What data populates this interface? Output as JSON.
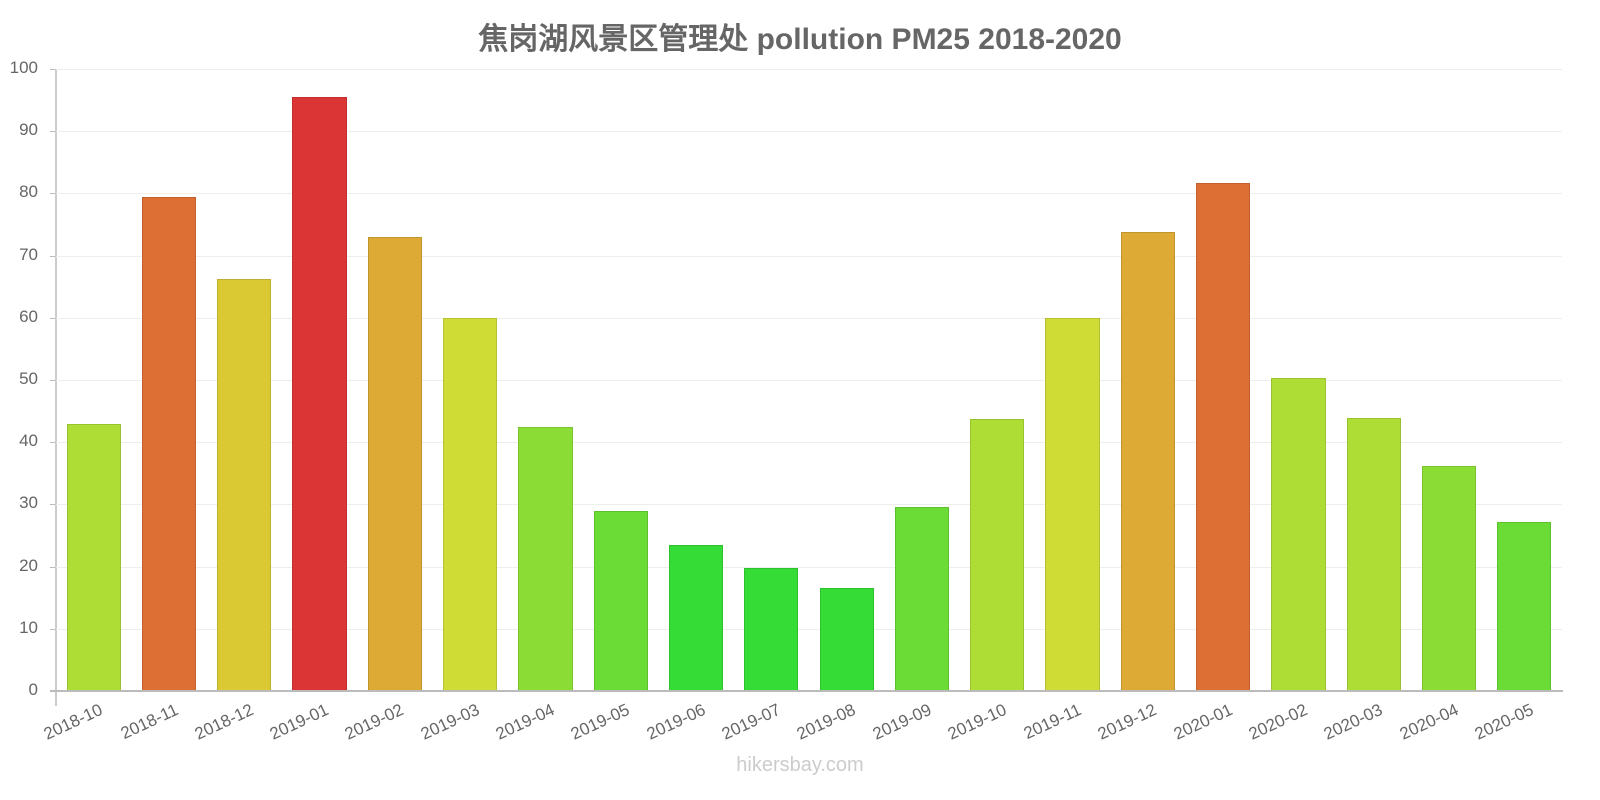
{
  "chart_data": {
    "type": "bar",
    "title": "焦岗湖风景区管理处 pollution PM25 2018-2020",
    "xlabel": "",
    "ylabel": "",
    "ylim": [
      0,
      100
    ],
    "yticks": [
      0,
      10,
      20,
      30,
      40,
      50,
      60,
      70,
      80,
      90,
      100
    ],
    "grid": true,
    "legend": null,
    "categories": [
      "2018-10",
      "2018-11",
      "2018-12",
      "2019-01",
      "2019-02",
      "2019-03",
      "2019-04",
      "2019-05",
      "2019-06",
      "2019-07",
      "2019-08",
      "2019-09",
      "2019-10",
      "2019-11",
      "2019-12",
      "2020-01",
      "2020-02",
      "2020-03",
      "2020-04",
      "2020-05"
    ],
    "values": [
      43.0,
      79.4,
      66.3,
      95.5,
      73.0,
      59.9,
      42.4,
      29.0,
      23.4,
      19.8,
      16.6,
      29.6,
      43.7,
      60.0,
      73.8,
      81.6,
      50.4,
      43.9,
      36.2,
      27.1
    ],
    "colors": [
      "#aedd35",
      "#dd6f35",
      "#dbc934",
      "#dc3535",
      "#dcaa35",
      "#cfdc35",
      "#8bdd35",
      "#6adc35",
      "#35dc35",
      "#35dc35",
      "#35dc35",
      "#6adc35",
      "#aedd35",
      "#cfdc35",
      "#dcaa35",
      "#dd6f35",
      "#aedd35",
      "#aedd35",
      "#8bdd35",
      "#6adc35"
    ]
  },
  "watermark": "hikersbay.com"
}
